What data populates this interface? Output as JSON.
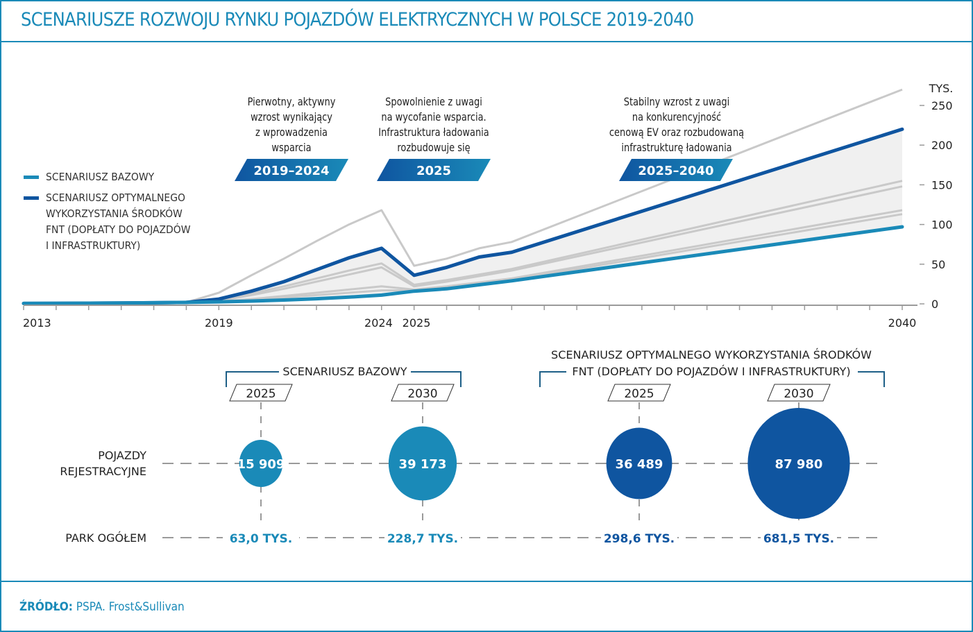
{
  "header": {
    "title": "SCENARIUSZE ROZWOJU RYNKU POJAZDÓW ELEKTRYCZNYCH W POLSCE 2019-2040"
  },
  "colors": {
    "base": "#1a8ab8",
    "optimal": "#0f55a0",
    "grey": "#c9c9c9",
    "band": "#f0f0f0",
    "frame": "#1a8ab8"
  },
  "legend": [
    {
      "label": "SCENARIUSZ BAZOWY",
      "color": "#1a8ab8"
    },
    {
      "label_lines": [
        "SCENARIUSZ OPTYMALNEGO",
        "WYKORZYSTANIA ŚRODKÓW",
        "FNT (DOPŁATY DO POJAZDÓW",
        "I INFRASTRUKTURY)"
      ],
      "color": "#0f55a0"
    }
  ],
  "annotations": [
    {
      "lines": [
        "Pierwotny, aktywny",
        "wzrost wynikający",
        "z wprowadzenia",
        "wsparcia"
      ],
      "badge": "2019–2024"
    },
    {
      "lines": [
        "Spowolnienie z uwagi",
        "na wycofanie wsparcia.",
        "Infrastruktura ładowania",
        "rozbudowuje się"
      ],
      "badge": "2025"
    },
    {
      "lines": [
        "Stabilny wzrost z uwagi",
        "na konkurencyjność",
        "cenową EV oraz rozbudowaną",
        "infrastrukturę ładowania"
      ],
      "badge": "2025–2040"
    }
  ],
  "chart_data": {
    "type": "line",
    "title": "SCENARIUSZE ROZWOJU RYNKU POJAZDÓW ELEKTRYCZNYCH W POLSCE 2019-2040",
    "ylabel": "TYS.",
    "xlabel": "",
    "xlim": [
      2013,
      2040
    ],
    "ylim": [
      0,
      250
    ],
    "yticks": [
      0,
      50,
      100,
      150,
      200,
      250
    ],
    "xtick_labels": [
      "2013",
      "2019",
      "2024",
      "2025",
      "2040"
    ],
    "x": [
      2013,
      2014,
      2015,
      2016,
      2017,
      2018,
      2019,
      2020,
      2021,
      2022,
      2023,
      2024,
      2025,
      2026,
      2027,
      2028,
      2040
    ],
    "series": [
      {
        "name": "SCENARIUSZ BAZOWY",
        "role": "base",
        "values": [
          0.5,
          0.7,
          0.9,
          1.1,
          1.4,
          1.8,
          2.5,
          3.5,
          4.8,
          6.5,
          8.5,
          11,
          16,
          19,
          24,
          29,
          97
        ]
      },
      {
        "name": "SCENARIUSZ OPTYMALNEGO WYKORZYSTANIA ŚRODKÓW FNT (DOPŁATY DO POJAZDÓW I INFRASTRUKTURY)",
        "role": "optimal",
        "values": [
          0.5,
          0.7,
          0.9,
          1.1,
          1.4,
          1.8,
          6,
          16,
          28,
          43,
          58,
          70,
          36,
          46,
          59,
          65,
          220
        ]
      },
      {
        "name": "scenario-grey-1",
        "role": "grey",
        "values": [
          0.5,
          0.7,
          0.9,
          1.1,
          1.4,
          1.8,
          14,
          36,
          57,
          79,
          100,
          118,
          48,
          57,
          70,
          78,
          270
        ]
      },
      {
        "name": "scenario-grey-2",
        "role": "grey",
        "values": [
          0.5,
          0.7,
          0.9,
          1.1,
          1.4,
          1.8,
          5,
          13,
          22,
          32,
          42,
          51,
          24,
          30,
          37,
          44,
          155
        ]
      },
      {
        "name": "scenario-grey-3",
        "role": "grey",
        "values": [
          0.5,
          0.7,
          0.9,
          1.1,
          1.4,
          1.8,
          4,
          11,
          19,
          28,
          37,
          46,
          22,
          28,
          35,
          42,
          148
        ]
      },
      {
        "name": "scenario-grey-4",
        "role": "grey",
        "values": [
          0.5,
          0.7,
          0.9,
          1.1,
          1.4,
          1.8,
          3,
          6,
          10,
          14,
          18,
          22,
          18,
          22,
          27,
          32,
          118
        ]
      },
      {
        "name": "scenario-grey-5",
        "role": "grey",
        "values": [
          0.5,
          0.7,
          0.9,
          1.1,
          1.4,
          1.8,
          3,
          5,
          8,
          11,
          14,
          17,
          17,
          20,
          25,
          30,
          113
        ]
      }
    ]
  },
  "bottom": {
    "groups": [
      {
        "label": "SCENARIUSZ BAZOWY",
        "years": [
          "2025",
          "2030"
        ]
      },
      {
        "label_lines": [
          "SCENARIUSZ OPTYMALNEGO WYKORZYSTANIA ŚRODKÓW",
          "FNT (DOPŁATY DO POJAZDÓW I INFRASTRUKTURY)"
        ],
        "years": [
          "2025",
          "2030"
        ]
      }
    ],
    "row_labels": {
      "registrations": [
        "POJAZDY",
        "REJESTRACYJNE"
      ],
      "fleet": "PARK OGÓŁEM"
    },
    "bubbles": [
      {
        "year": "2025",
        "scenario": "base",
        "registrations": 15909,
        "registrations_label": "15 909",
        "fleet_label": "63,0 TYS."
      },
      {
        "year": "2030",
        "scenario": "base",
        "registrations": 39173,
        "registrations_label": "39 173",
        "fleet_label": "228,7 TYS."
      },
      {
        "year": "2025",
        "scenario": "optimal",
        "registrations": 36489,
        "registrations_label": "36 489",
        "fleet_label": "298,6 TYS."
      },
      {
        "year": "2030",
        "scenario": "optimal",
        "registrations": 87980,
        "registrations_label": "87 980",
        "fleet_label": "681,5 TYS."
      }
    ]
  },
  "footer": {
    "source_label": "ŹRÓDŁO:",
    "source_text": "PSPA. Frost&Sullivan"
  }
}
